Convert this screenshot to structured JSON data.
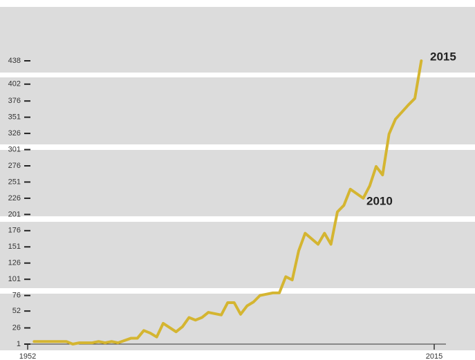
{
  "chart_data": {
    "type": "line",
    "annotations": [
      "2015",
      "2010"
    ],
    "x": [
      1953,
      1954,
      1956,
      1957,
      1958,
      1959,
      1960,
      1962,
      1963,
      1964,
      1965,
      1966,
      1968,
      1969,
      1970,
      1971,
      1972,
      1973,
      1975,
      1976,
      1977,
      1978,
      1979,
      1980,
      1982,
      1983,
      1984,
      1985,
      1986,
      1987,
      1988,
      1990,
      1991,
      1992,
      1993,
      1994,
      1995,
      1997,
      1998,
      1999,
      2000,
      2001,
      2002,
      2004,
      2005,
      2006,
      2007,
      2008,
      2009,
      2011,
      2012,
      2013
    ],
    "series": [
      {
        "color": "#d4b531",
        "values": [
          5,
          5,
          5,
          5,
          5,
          1,
          3,
          3,
          5,
          3,
          5,
          3,
          10,
          10,
          22,
          18,
          12,
          33,
          20,
          28,
          42,
          38,
          42,
          50,
          46,
          65,
          65,
          47,
          60,
          66,
          76,
          80,
          80,
          105,
          100,
          145,
          172,
          155,
          172,
          155,
          205,
          215,
          240,
          226,
          245,
          275,
          262,
          325,
          348,
          370,
          380,
          438
        ]
      }
    ],
    "xlim": [
      1952,
      2015
    ],
    "xticks": [
      1952,
      2015
    ],
    "ylim": [
      1,
      438
    ],
    "yticks": [
      1,
      26,
      52,
      76,
      101,
      126,
      151,
      176,
      201,
      226,
      251,
      276,
      301,
      326,
      351,
      376,
      402,
      438
    ]
  }
}
